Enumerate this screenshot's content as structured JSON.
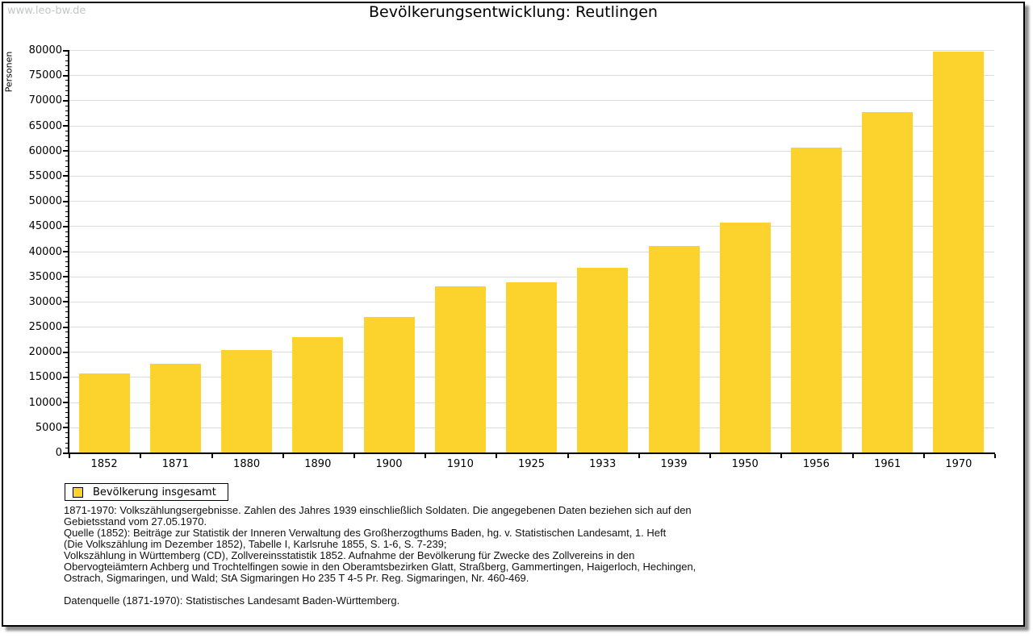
{
  "page": {
    "watermark": "www.leo-bw.de",
    "title": "Bevölkerungsentwicklung: Reutlingen"
  },
  "chart_data": {
    "type": "bar",
    "title": "Bevölkerungsentwicklung: Reutlingen",
    "xlabel": "",
    "ylabel": "Personen",
    "categories": [
      "1852",
      "1871",
      "1880",
      "1890",
      "1900",
      "1910",
      "1925",
      "1933",
      "1939",
      "1950",
      "1956",
      "1961",
      "1970"
    ],
    "values": [
      15700,
      17600,
      20400,
      22900,
      27000,
      33000,
      33900,
      36800,
      41000,
      45700,
      60600,
      67700,
      79700
    ],
    "series_name": "Bevölkerung insgesamt",
    "ylim": [
      0,
      80000
    ],
    "ytick_step": 5000,
    "minor_tick_step": 1000,
    "grid": "horizontal",
    "bar_color": "#fcd22c",
    "gridline_color": "#dcdcdc",
    "legend_position": "bottom-left"
  },
  "legend": {
    "items": [
      {
        "label": "Bevölkerung insgesamt",
        "swatch_color": "#fcd22c"
      }
    ]
  },
  "footnotes": {
    "lines": [
      "1871-1970: Volkszählungsergebnisse. Zahlen des Jahres 1939 einschließlich Soldaten. Die angegebenen Daten beziehen sich auf den",
      "Gebietsstand vom 27.05.1970.",
      "Quelle (1852): Beiträge zur Statistik der Inneren Verwaltung des Großherzogthums Baden, hg. v. Statistischen Landesamt, 1. Heft",
      "(Die Volkszählung im Dezember 1852), Tabelle I, Karlsruhe 1855, S. 1-6, S. 7-239;",
      "Volkszählung in Württemberg (CD), Zollvereinsstatistik 1852. Aufnahme der Bevölkerung für Zwecke des Zollvereins in den",
      "Obervogteiämtern Achberg und Trochtelfingen sowie in den Oberamtsbezirken Glatt, Straßberg, Gammertingen, Haigerloch, Hechingen,",
      "Ostrach, Sigmaringen, und Wald; StA Sigmaringen Ho 235 T 4-5 Pr. Reg. Sigmaringen, Nr. 460-469.",
      "",
      "Datenquelle (1871-1970): Statistisches Landesamt Baden-Württemberg."
    ]
  }
}
